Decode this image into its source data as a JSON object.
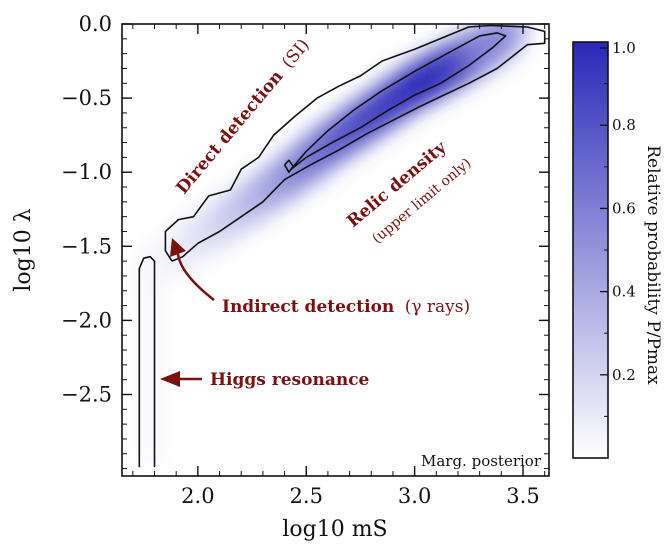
{
  "chart_data": {
    "type": "heatmap",
    "title": "",
    "xlabel": "log10 mS",
    "ylabel": "log10 λ",
    "xlim": [
      1.65,
      3.62
    ],
    "ylim": [
      -3.05,
      0.0
    ],
    "x_ticks": [
      2.0,
      2.5,
      3.0,
      3.5
    ],
    "x_tick_labels": [
      "2.0",
      "2.5",
      "3.0",
      "3.5"
    ],
    "y_ticks": [
      0.0,
      -0.5,
      -1.0,
      -1.5,
      -2.0,
      -2.5
    ],
    "y_tick_labels": [
      "0.0",
      "−0.5",
      "−1.0",
      "−1.5",
      "−2.0",
      "−2.5"
    ],
    "grid": false,
    "colorbar": {
      "label": "Relative probability P/Pmax",
      "range": [
        0.0,
        1.0
      ],
      "ticks": [
        0.2,
        0.4,
        0.6,
        0.8,
        1.0
      ],
      "tick_labels": [
        "0.2",
        "0.4",
        "0.6",
        "0.8",
        "1.0"
      ],
      "color_low": "#ffffff",
      "color_high": "#2929b8"
    },
    "posterior_band": {
      "ridge": [
        {
          "x": 1.82,
          "y": -1.62,
          "p": 0.03
        },
        {
          "x": 2.0,
          "y": -1.45,
          "p": 0.1
        },
        {
          "x": 2.2,
          "y": -1.25,
          "p": 0.25
        },
        {
          "x": 2.4,
          "y": -1.05,
          "p": 0.45
        },
        {
          "x": 2.6,
          "y": -0.82,
          "p": 0.7
        },
        {
          "x": 2.8,
          "y": -0.62,
          "p": 0.85
        },
        {
          "x": 3.0,
          "y": -0.42,
          "p": 0.95
        },
        {
          "x": 3.15,
          "y": -0.3,
          "p": 1.0
        },
        {
          "x": 3.3,
          "y": -0.18,
          "p": 0.8
        },
        {
          "x": 3.42,
          "y": -0.07,
          "p": 0.4
        }
      ],
      "width_y": 0.15
    },
    "higgs_region": {
      "x": 1.79,
      "y_range": [
        -2.95,
        -1.6
      ],
      "p": 0.04
    },
    "contours": [
      {
        "name": "outer",
        "points": [
          [
            1.73,
            -2.99
          ],
          [
            1.73,
            -1.65
          ],
          [
            1.75,
            -1.58
          ],
          [
            1.78,
            -1.57
          ],
          [
            1.8,
            -1.6
          ],
          [
            1.8,
            -2.99
          ]
        ]
      },
      {
        "name": "outer",
        "points": [
          [
            1.88,
            -1.6
          ],
          [
            1.85,
            -1.53
          ],
          [
            1.85,
            -1.4
          ],
          [
            1.91,
            -1.32
          ],
          [
            1.98,
            -1.3
          ],
          [
            2.05,
            -1.16
          ],
          [
            2.15,
            -1.12
          ],
          [
            2.2,
            -0.98
          ],
          [
            2.28,
            -0.9
          ],
          [
            2.35,
            -0.75
          ],
          [
            2.45,
            -0.62
          ],
          [
            2.55,
            -0.5
          ],
          [
            2.65,
            -0.42
          ],
          [
            2.75,
            -0.35
          ],
          [
            2.85,
            -0.25
          ],
          [
            3.0,
            -0.17
          ],
          [
            3.15,
            -0.08
          ],
          [
            3.25,
            -0.02
          ],
          [
            3.35,
            -0.01
          ],
          [
            3.52,
            -0.02
          ],
          [
            3.6,
            -0.05
          ],
          [
            3.6,
            -0.13
          ],
          [
            3.52,
            -0.14
          ],
          [
            3.45,
            -0.22
          ],
          [
            3.38,
            -0.3
          ],
          [
            3.25,
            -0.4
          ],
          [
            3.12,
            -0.49
          ],
          [
            3.02,
            -0.56
          ],
          [
            2.9,
            -0.65
          ],
          [
            2.78,
            -0.74
          ],
          [
            2.65,
            -0.85
          ],
          [
            2.52,
            -0.95
          ],
          [
            2.4,
            -1.05
          ],
          [
            2.3,
            -1.2
          ],
          [
            2.2,
            -1.3
          ],
          [
            2.1,
            -1.4
          ],
          [
            2.0,
            -1.48
          ],
          [
            1.93,
            -1.57
          ],
          [
            1.88,
            -1.6
          ]
        ]
      },
      {
        "name": "inner",
        "points": [
          [
            2.43,
            -0.98
          ],
          [
            2.5,
            -0.86
          ],
          [
            2.6,
            -0.72
          ],
          [
            2.72,
            -0.58
          ],
          [
            2.85,
            -0.45
          ],
          [
            3.0,
            -0.32
          ],
          [
            3.15,
            -0.2
          ],
          [
            3.3,
            -0.08
          ],
          [
            3.38,
            -0.06
          ],
          [
            3.42,
            -0.08
          ],
          [
            3.36,
            -0.16
          ],
          [
            3.25,
            -0.28
          ],
          [
            3.12,
            -0.4
          ],
          [
            3.0,
            -0.48
          ],
          [
            2.88,
            -0.58
          ],
          [
            2.75,
            -0.7
          ],
          [
            2.62,
            -0.8
          ],
          [
            2.5,
            -0.9
          ],
          [
            2.43,
            -0.98
          ]
        ]
      },
      {
        "name": "inner-small",
        "points": [
          [
            2.4,
            -0.95
          ],
          [
            2.42,
            -0.92
          ],
          [
            2.44,
            -0.96
          ],
          [
            2.42,
            -1.0
          ],
          [
            2.4,
            -0.95
          ]
        ]
      }
    ],
    "annotations": [
      {
        "bold_text": "Direct detection",
        "plain_text": "(SI)",
        "color": "#7a1010"
      },
      {
        "bold_text": "Relic density",
        "plain_text": "(upper limit only)",
        "color": "#7a1010"
      },
      {
        "bold_text": "Indirect detection",
        "plain_text": "(γ rays)",
        "color": "#7a1010"
      },
      {
        "bold_text": "Higgs resonance",
        "plain_text": "",
        "color": "#7a1010"
      },
      {
        "bold_text": "",
        "plain_text": "Marg. posterior",
        "color": "#111111"
      }
    ]
  }
}
